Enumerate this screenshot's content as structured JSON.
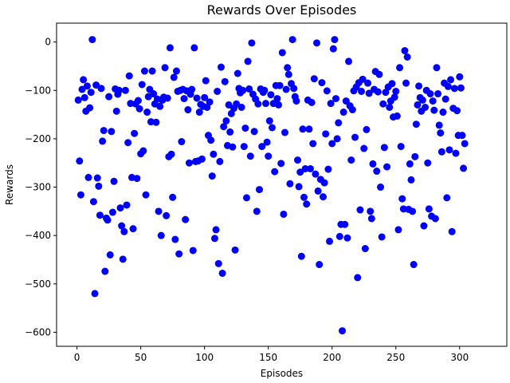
{
  "chart_data": {
    "type": "scatter",
    "title": "Rewards Over Episodes",
    "xlabel": "Episodes",
    "ylabel": "Rewards",
    "xlim": [
      -16,
      337
    ],
    "ylim": [
      -629,
      39
    ],
    "xticks": [
      0,
      50,
      100,
      150,
      200,
      250,
      300
    ],
    "yticks": [
      0,
      -100,
      -200,
      -300,
      -400,
      -500,
      -600
    ],
    "grid": false,
    "legend": "none",
    "marker_color": "#0000ff",
    "series": [
      {
        "points": [
          [
            1,
            -120
          ],
          [
            2,
            -246
          ],
          [
            3,
            -316
          ],
          [
            4,
            -98
          ],
          [
            5,
            -78
          ],
          [
            6,
            -115
          ],
          [
            7,
            -143
          ],
          [
            8,
            -91
          ],
          [
            9,
            -280
          ],
          [
            10,
            -136
          ],
          [
            11,
            -104
          ],
          [
            12,
            5
          ],
          [
            13,
            -330
          ],
          [
            14,
            -520
          ],
          [
            15,
            -89
          ],
          [
            16,
            -281
          ],
          [
            17,
            -298
          ],
          [
            18,
            -358
          ],
          [
            19,
            -96
          ],
          [
            20,
            -205
          ],
          [
            21,
            -183
          ],
          [
            22,
            -474
          ],
          [
            23,
            -364
          ],
          [
            24,
            -368
          ],
          [
            25,
            -113
          ],
          [
            26,
            -440
          ],
          [
            27,
            -185
          ],
          [
            28,
            -352
          ],
          [
            29,
            -288
          ],
          [
            30,
            -97
          ],
          [
            31,
            -143
          ],
          [
            32,
            -108
          ],
          [
            33,
            -100
          ],
          [
            34,
            -343
          ],
          [
            35,
            -380
          ],
          [
            36,
            -449
          ],
          [
            37,
            -392
          ],
          [
            38,
            -100
          ],
          [
            39,
            -337
          ],
          [
            40,
            -208
          ],
          [
            41,
            -70
          ],
          [
            42,
            -127
          ],
          [
            43,
            -280
          ],
          [
            44,
            -386
          ],
          [
            45,
            -189
          ],
          [
            46,
            -128
          ],
          [
            47,
            -282
          ],
          [
            48,
            -121
          ],
          [
            49,
            -138
          ],
          [
            50,
            -231
          ],
          [
            51,
            -88
          ],
          [
            52,
            -225
          ],
          [
            53,
            -60
          ],
          [
            54,
            -316
          ],
          [
            55,
            -145
          ],
          [
            56,
            -113
          ],
          [
            57,
            -98
          ],
          [
            58,
            -165
          ],
          [
            59,
            -60
          ],
          [
            60,
            -107
          ],
          [
            61,
            -128
          ],
          [
            62,
            -166
          ],
          [
            63,
            -118
          ],
          [
            64,
            -350
          ],
          [
            65,
            -133
          ],
          [
            66,
            -400
          ],
          [
            67,
            -120
          ],
          [
            68,
            -114
          ],
          [
            69,
            -53
          ],
          [
            70,
            -359
          ],
          [
            71,
            -116
          ],
          [
            72,
            -237
          ],
          [
            73,
            -12
          ],
          [
            74,
            -232
          ],
          [
            75,
            -321
          ],
          [
            76,
            -73
          ],
          [
            77,
            -408
          ],
          [
            78,
            -60
          ],
          [
            79,
            -102
          ],
          [
            80,
            -438
          ],
          [
            81,
            -100
          ],
          [
            82,
            -206
          ],
          [
            83,
            -98
          ],
          [
            84,
            -117
          ],
          [
            85,
            -367
          ],
          [
            86,
            -101
          ],
          [
            87,
            -140
          ],
          [
            88,
            -250
          ],
          [
            89,
            -108
          ],
          [
            90,
            -98
          ],
          [
            91,
            -431
          ],
          [
            92,
            -12
          ],
          [
            93,
            -247
          ],
          [
            94,
            -116
          ],
          [
            95,
            -246
          ],
          [
            96,
            -145
          ],
          [
            97,
            -129
          ],
          [
            98,
            -242
          ],
          [
            99,
            -133
          ],
          [
            100,
            -115
          ],
          [
            101,
            -80
          ],
          [
            102,
            -135
          ],
          [
            103,
            -193
          ],
          [
            104,
            -124
          ],
          [
            105,
            -203
          ],
          [
            106,
            -277
          ],
          [
            107,
            -232
          ],
          [
            108,
            -406
          ],
          [
            109,
            -388
          ],
          [
            110,
            -102
          ],
          [
            111,
            -458
          ],
          [
            112,
            -247
          ],
          [
            113,
            -52
          ],
          [
            114,
            -478
          ],
          [
            115,
            -175
          ],
          [
            116,
            -82
          ],
          [
            117,
            -163
          ],
          [
            118,
            -214
          ],
          [
            119,
            -130
          ],
          [
            120,
            -186
          ],
          [
            121,
            -148
          ],
          [
            122,
            -217
          ],
          [
            123,
            -137
          ],
          [
            124,
            -430
          ],
          [
            125,
            -128
          ],
          [
            126,
            -65
          ],
          [
            127,
            -96
          ],
          [
            128,
            -105
          ],
          [
            129,
            -135
          ],
          [
            130,
            -100
          ],
          [
            131,
            -216
          ],
          [
            132,
            -178
          ],
          [
            133,
            -322
          ],
          [
            134,
            -40
          ],
          [
            135,
            -97
          ],
          [
            136,
            -236
          ],
          [
            137,
            -2
          ],
          [
            138,
            -108
          ],
          [
            139,
            -185
          ],
          [
            140,
            -118
          ],
          [
            141,
            -350
          ],
          [
            142,
            -128
          ],
          [
            143,
            -305
          ],
          [
            144,
            -97
          ],
          [
            145,
            -216
          ],
          [
            146,
            -104
          ],
          [
            147,
            -100
          ],
          [
            148,
            -127
          ],
          [
            149,
            -207
          ],
          [
            150,
            -236
          ],
          [
            151,
            -163
          ],
          [
            152,
            -109
          ],
          [
            153,
            -177
          ],
          [
            154,
            -127
          ],
          [
            155,
            -268
          ],
          [
            156,
            -90
          ],
          [
            157,
            -117
          ],
          [
            158,
            -130
          ],
          [
            159,
            -90
          ],
          [
            160,
            -251
          ],
          [
            161,
            -22
          ],
          [
            162,
            -356
          ],
          [
            163,
            -187
          ],
          [
            164,
            -98
          ],
          [
            165,
            -53
          ],
          [
            166,
            -67
          ],
          [
            167,
            -293
          ],
          [
            168,
            -86
          ],
          [
            169,
            5
          ],
          [
            170,
            -96
          ],
          [
            171,
            -113
          ],
          [
            172,
            -122
          ],
          [
            173,
            -244
          ],
          [
            174,
            -299
          ],
          [
            175,
            -269
          ],
          [
            176,
            -443
          ],
          [
            177,
            -180
          ],
          [
            178,
            -321
          ],
          [
            179,
            -262
          ],
          [
            180,
            -335
          ],
          [
            181,
            -120
          ],
          [
            182,
            -180
          ],
          [
            183,
            -262
          ],
          [
            184,
            -125
          ],
          [
            185,
            -210
          ],
          [
            186,
            -76
          ],
          [
            187,
            -273
          ],
          [
            188,
            -2
          ],
          [
            189,
            -308
          ],
          [
            190,
            -460
          ],
          [
            191,
            -284
          ],
          [
            192,
            -84
          ],
          [
            193,
            -320
          ],
          [
            194,
            -291
          ],
          [
            195,
            -190
          ],
          [
            196,
            -101
          ],
          [
            197,
            -263
          ],
          [
            198,
            -412
          ],
          [
            199,
            -127
          ],
          [
            200,
            -210
          ],
          [
            201,
            -14
          ],
          [
            202,
            5
          ],
          [
            203,
            -117
          ],
          [
            204,
            -200
          ],
          [
            205,
            -167
          ],
          [
            206,
            -402
          ],
          [
            207,
            -377
          ],
          [
            208,
            -597
          ],
          [
            209,
            -145
          ],
          [
            210,
            -377
          ],
          [
            211,
            -122
          ],
          [
            212,
            -405
          ],
          [
            213,
            -40
          ],
          [
            214,
            -132
          ],
          [
            215,
            -244
          ],
          [
            216,
            -140
          ],
          [
            217,
            -101
          ],
          [
            218,
            -197
          ],
          [
            219,
            -93
          ],
          [
            220,
            -487
          ],
          [
            221,
            -84
          ],
          [
            222,
            -347
          ],
          [
            223,
            -102
          ],
          [
            224,
            -77
          ],
          [
            225,
            -220
          ],
          [
            226,
            -427
          ],
          [
            227,
            -181
          ],
          [
            228,
            -85
          ],
          [
            229,
            -106
          ],
          [
            230,
            -350
          ],
          [
            231,
            -365
          ],
          [
            232,
            -252
          ],
          [
            233,
            -98
          ],
          [
            234,
            -61
          ],
          [
            235,
            -267
          ],
          [
            236,
            -103
          ],
          [
            237,
            -67
          ],
          [
            238,
            -300
          ],
          [
            239,
            -403
          ],
          [
            240,
            -128
          ],
          [
            241,
            -218
          ],
          [
            242,
            -104
          ],
          [
            243,
            -258
          ],
          [
            244,
            -93
          ],
          [
            245,
            -135
          ],
          [
            246,
            -122
          ],
          [
            247,
            -86
          ],
          [
            248,
            -155
          ],
          [
            249,
            -114
          ],
          [
            250,
            -102
          ],
          [
            251,
            -153
          ],
          [
            252,
            -388
          ],
          [
            253,
            -53
          ],
          [
            254,
            -216
          ],
          [
            255,
            -324
          ],
          [
            256,
            -345
          ],
          [
            257,
            -18
          ],
          [
            258,
            -85
          ],
          [
            259,
            -31
          ],
          [
            260,
            -346
          ],
          [
            261,
            -252
          ],
          [
            262,
            -285
          ],
          [
            263,
            -350
          ],
          [
            264,
            -460
          ],
          [
            265,
            -237
          ],
          [
            266,
            -170
          ],
          [
            267,
            -130
          ],
          [
            268,
            -91
          ],
          [
            269,
            -115
          ],
          [
            270,
            -143
          ],
          [
            271,
            -120
          ],
          [
            272,
            -380
          ],
          [
            273,
            -135
          ],
          [
            274,
            -100
          ],
          [
            275,
            -250
          ],
          [
            276,
            -345
          ],
          [
            277,
            -107
          ],
          [
            278,
            -360
          ],
          [
            279,
            -122
          ],
          [
            280,
            -141
          ],
          [
            281,
            -365
          ],
          [
            282,
            -53
          ],
          [
            283,
            -107
          ],
          [
            284,
            -172
          ],
          [
            285,
            -188
          ],
          [
            286,
            -227
          ],
          [
            287,
            -145
          ],
          [
            288,
            -85
          ],
          [
            289,
            -118
          ],
          [
            290,
            -322
          ],
          [
            291,
            -92
          ],
          [
            292,
            -223
          ],
          [
            293,
            -78
          ],
          [
            294,
            -392
          ],
          [
            295,
            -137
          ],
          [
            296,
            -96
          ],
          [
            297,
            -230
          ],
          [
            298,
            -142
          ],
          [
            299,
            -193
          ],
          [
            300,
            -72
          ],
          [
            301,
            -95
          ],
          [
            302,
            -193
          ],
          [
            303,
            -261
          ],
          [
            304,
            -210
          ]
        ]
      }
    ]
  }
}
